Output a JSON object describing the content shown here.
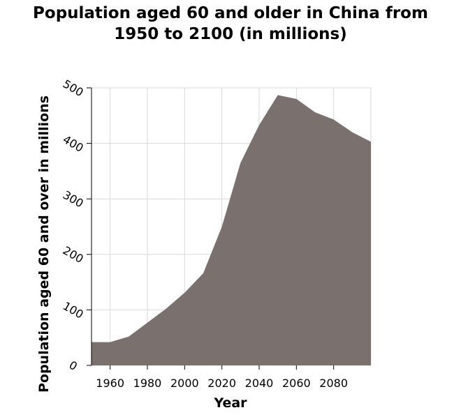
{
  "chart_data": {
    "type": "area",
    "title": "Population aged 60 and older in China from 1950 to 2100 (in millions)",
    "title_lines": [
      "Population aged 60 and older in China from",
      "1950 to 2100 (in millions)"
    ],
    "xlabel": "Year",
    "ylabel": "Population aged 60 and over in millions",
    "xlim": [
      1950,
      2100
    ],
    "ylim": [
      0,
      500
    ],
    "x_ticks": [
      1960,
      1980,
      2000,
      2020,
      2040,
      2060,
      2080
    ],
    "x_gridlines": [
      1960,
      1980,
      2000,
      2020,
      2040,
      2060,
      2080,
      2100
    ],
    "y_ticks": [
      0,
      100,
      200,
      300,
      400,
      500
    ],
    "grid": true,
    "fill_color": "#7a706d",
    "grid_color": "#d9d9d9",
    "series": [
      {
        "x": [
          1950,
          1960,
          1970,
          1980,
          1990,
          2000,
          2010,
          2020,
          2030,
          2040,
          2050,
          2060,
          2070,
          2080,
          2090,
          2100
        ],
        "values": [
          42,
          42,
          52,
          77,
          102,
          131,
          166,
          250,
          365,
          433,
          487,
          480,
          456,
          443,
          420,
          403
        ]
      }
    ]
  }
}
